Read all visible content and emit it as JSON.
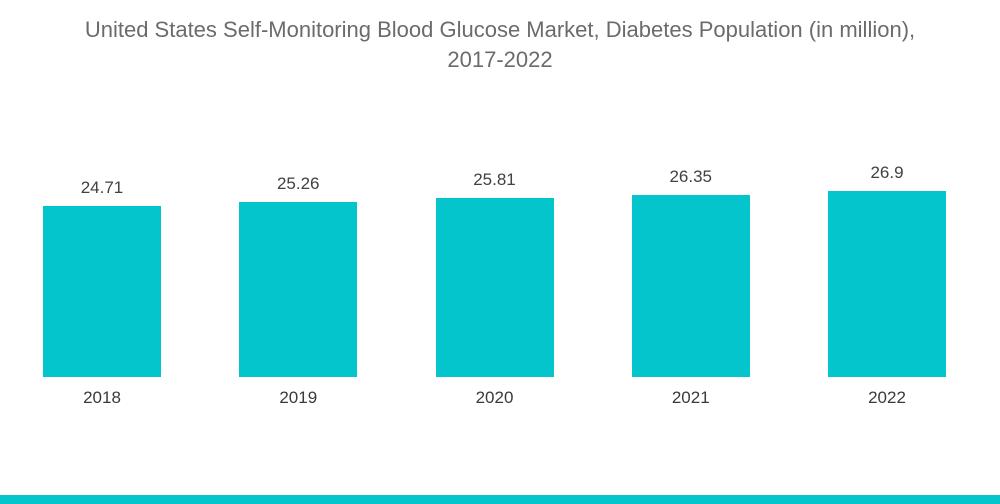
{
  "header": {
    "title_line1": "United States Self-Monitoring Blood Glucose Market, Diabetes Population (in million),",
    "title_line2": "2017-2022"
  },
  "chart_data": {
    "type": "bar",
    "title": "United States Self-Monitoring Blood Glucose Market, Diabetes Population (in million), 2017-2022",
    "categories": [
      "2018",
      "2019",
      "2020",
      "2021",
      "2022"
    ],
    "values": [
      24.71,
      25.26,
      25.81,
      26.35,
      26.9
    ],
    "labels": [
      "24.71",
      "25.26",
      "25.81",
      "26.35",
      "26.9"
    ],
    "xlabel": "",
    "ylabel": "",
    "ylim": [
      0,
      27.5
    ],
    "grid": false,
    "legend": false,
    "data_labels": true,
    "bar_color": "#04c4cc"
  },
  "footer": {
    "accent_color": "#04c4cc"
  }
}
